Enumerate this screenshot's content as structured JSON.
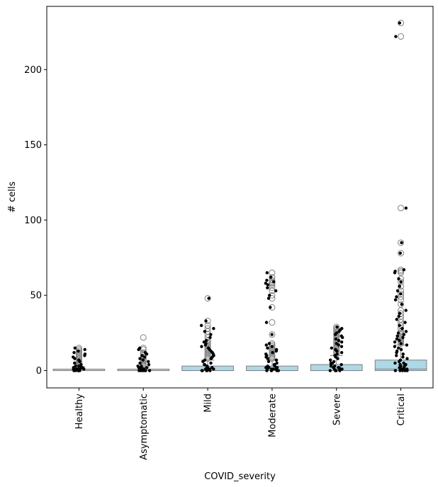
{
  "chart_data": {
    "type": "box",
    "title": "",
    "xlabel": "COVID_severity",
    "ylabel": "# cells",
    "categories": [
      "Healthy",
      "Asymptomatic",
      "Mild",
      "Moderate",
      "Severe",
      "Critical"
    ],
    "ylim": [
      -11.5,
      242
    ],
    "yticks": [
      0,
      50,
      100,
      150,
      200
    ],
    "grid": false,
    "legend": "none",
    "box_color": "#add8e6",
    "edge_color": "#808080",
    "point_color": "#000000",
    "boxes": [
      {
        "category": "Healthy",
        "q1": 0,
        "median": 0,
        "q3": 1,
        "whisker_low": 0,
        "whisker_high": 2.5
      },
      {
        "category": "Asymptomatic",
        "q1": 0,
        "median": 0,
        "q3": 1,
        "whisker_low": 0,
        "whisker_high": 2.5
      },
      {
        "category": "Mild",
        "q1": 0,
        "median": 0,
        "q3": 3,
        "whisker_low": 0,
        "whisker_high": 7
      },
      {
        "category": "Moderate",
        "q1": 0,
        "median": 0,
        "q3": 3,
        "whisker_low": 0,
        "whisker_high": 7
      },
      {
        "category": "Severe",
        "q1": 0,
        "median": 0,
        "q3": 4,
        "whisker_low": 0,
        "whisker_high": 10
      },
      {
        "category": "Critical",
        "q1": 0,
        "median": 1,
        "q3": 7,
        "whisker_low": 0,
        "whisker_high": 17
      }
    ],
    "outliers": [
      [
        3,
        3.5,
        4,
        4.5,
        5,
        5.5,
        6,
        7,
        8,
        9,
        10,
        11,
        12,
        13,
        14,
        15
      ],
      [
        3,
        3.5,
        4,
        5,
        6,
        7,
        8,
        9,
        10,
        11,
        12,
        14,
        15,
        22
      ],
      [
        8,
        9,
        10,
        11,
        12,
        13,
        14,
        15,
        16,
        17,
        18,
        19,
        20,
        22,
        24,
        26,
        28,
        30,
        33,
        48
      ],
      [
        8,
        9,
        10,
        11,
        12,
        13,
        14,
        15,
        16,
        17,
        18,
        24,
        32,
        42,
        48,
        50,
        53,
        55,
        57,
        58,
        59,
        60,
        62,
        65
      ],
      [
        11,
        12,
        13,
        14,
        15,
        16,
        17,
        18,
        19,
        20,
        21,
        22,
        23,
        24,
        25,
        26,
        27,
        28,
        29
      ],
      [
        18,
        19,
        20,
        21,
        22,
        23,
        24,
        25,
        26,
        28,
        30,
        32,
        34,
        36,
        38,
        40,
        44,
        47,
        49,
        51,
        53,
        56,
        59,
        61,
        65,
        66,
        67,
        78,
        85,
        108,
        222,
        231
      ]
    ],
    "strip_points": [
      [
        0,
        0,
        0,
        0,
        0,
        0,
        1,
        1,
        1,
        1,
        1,
        2,
        2,
        2,
        3,
        3,
        4,
        5,
        6,
        7,
        8,
        9,
        10,
        11,
        12,
        13,
        14,
        15
      ],
      [
        0,
        0,
        0,
        0,
        0,
        0,
        1,
        1,
        1,
        1,
        2,
        2,
        2,
        3,
        3,
        4,
        5,
        6,
        7,
        8,
        9,
        10,
        11,
        12,
        14,
        15
      ],
      [
        0,
        0,
        0,
        0,
        0,
        1,
        1,
        1,
        1,
        2,
        2,
        2,
        3,
        3,
        4,
        4,
        5,
        6,
        7,
        8,
        9,
        10,
        11,
        12,
        13,
        14,
        15,
        16,
        17,
        18,
        19,
        20,
        22,
        24,
        26,
        28,
        30,
        33,
        48
      ],
      [
        0,
        0,
        0,
        0,
        0,
        1,
        1,
        1,
        1,
        2,
        2,
        2,
        3,
        3,
        4,
        4,
        5,
        6,
        7,
        8,
        9,
        10,
        11,
        12,
        13,
        14,
        15,
        16,
        17,
        18,
        24,
        32,
        42,
        48,
        50,
        53,
        55,
        57,
        58,
        59,
        60,
        62,
        65
      ],
      [
        0,
        0,
        0,
        0,
        0,
        1,
        1,
        1,
        2,
        2,
        2,
        3,
        3,
        4,
        4,
        5,
        5,
        6,
        7,
        8,
        9,
        10,
        11,
        12,
        13,
        14,
        15,
        16,
        17,
        18,
        19,
        20,
        21,
        22,
        23,
        24,
        25,
        26,
        27,
        28,
        29
      ],
      [
        0,
        0,
        0,
        0,
        0,
        1,
        1,
        1,
        2,
        2,
        3,
        3,
        4,
        4,
        5,
        5,
        6,
        7,
        8,
        9,
        10,
        11,
        12,
        13,
        14,
        15,
        16,
        17,
        18,
        19,
        20,
        21,
        22,
        23,
        24,
        25,
        26,
        28,
        30,
        32,
        34,
        36,
        38,
        40,
        44,
        47,
        49,
        51,
        53,
        56,
        59,
        61,
        65,
        66,
        67,
        78,
        85,
        108,
        222,
        231
      ]
    ]
  }
}
